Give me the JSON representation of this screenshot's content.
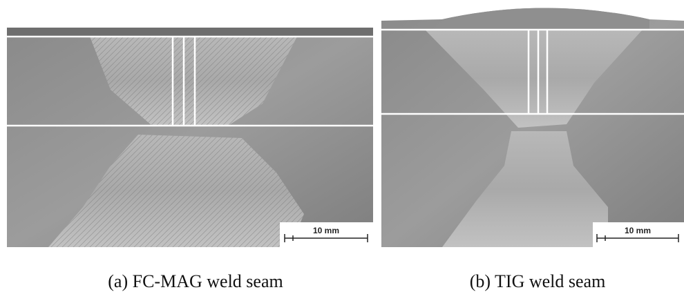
{
  "panels": [
    {
      "caption": "(a) FC-MAG weld seam",
      "scale_label": "10 mm"
    },
    {
      "caption": "(b) TIG weld seam",
      "scale_label": "10 mm"
    }
  ]
}
